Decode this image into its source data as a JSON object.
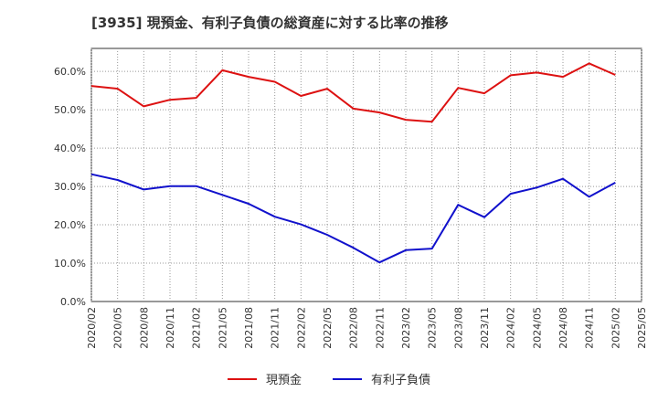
{
  "chart_data": {
    "type": "line",
    "title": "[3935]  現預金、有利子負債の総資産に対する比率の推移",
    "categories": [
      "2020/02",
      "2020/05",
      "2020/08",
      "2020/11",
      "2021/02",
      "2021/05",
      "2021/08",
      "2021/11",
      "2022/02",
      "2022/05",
      "2022/08",
      "2022/11",
      "2023/02",
      "2023/05",
      "2023/08",
      "2023/11",
      "2024/02",
      "2024/05",
      "2024/08",
      "2024/11",
      "2025/02",
      "2025/05"
    ],
    "series": [
      {
        "name": "現預金",
        "color": "#dd1111",
        "values": [
          56.2,
          55.5,
          50.9,
          52.6,
          53.1,
          60.3,
          58.6,
          57.3,
          53.6,
          55.5,
          50.3,
          49.3,
          47.4,
          46.9,
          55.7,
          54.3,
          59.0,
          59.7,
          58.6,
          62.1,
          59.1,
          null
        ]
      },
      {
        "name": "有利子負債",
        "color": "#1111cc",
        "values": [
          33.2,
          31.7,
          29.2,
          30.1,
          30.1,
          27.8,
          25.5,
          22.1,
          20.1,
          17.4,
          14.0,
          10.2,
          13.4,
          13.8,
          25.2,
          22.0,
          28.1,
          29.7,
          32.0,
          27.3,
          31.0,
          null
        ]
      }
    ],
    "y_ticks": [
      "0.0%",
      "10.0%",
      "20.0%",
      "30.0%",
      "40.0%",
      "50.0%",
      "60.0%"
    ],
    "ylim": [
      0,
      66
    ],
    "xlabel": "",
    "ylabel": "",
    "grid": true,
    "legend_position": "bottom-center"
  }
}
